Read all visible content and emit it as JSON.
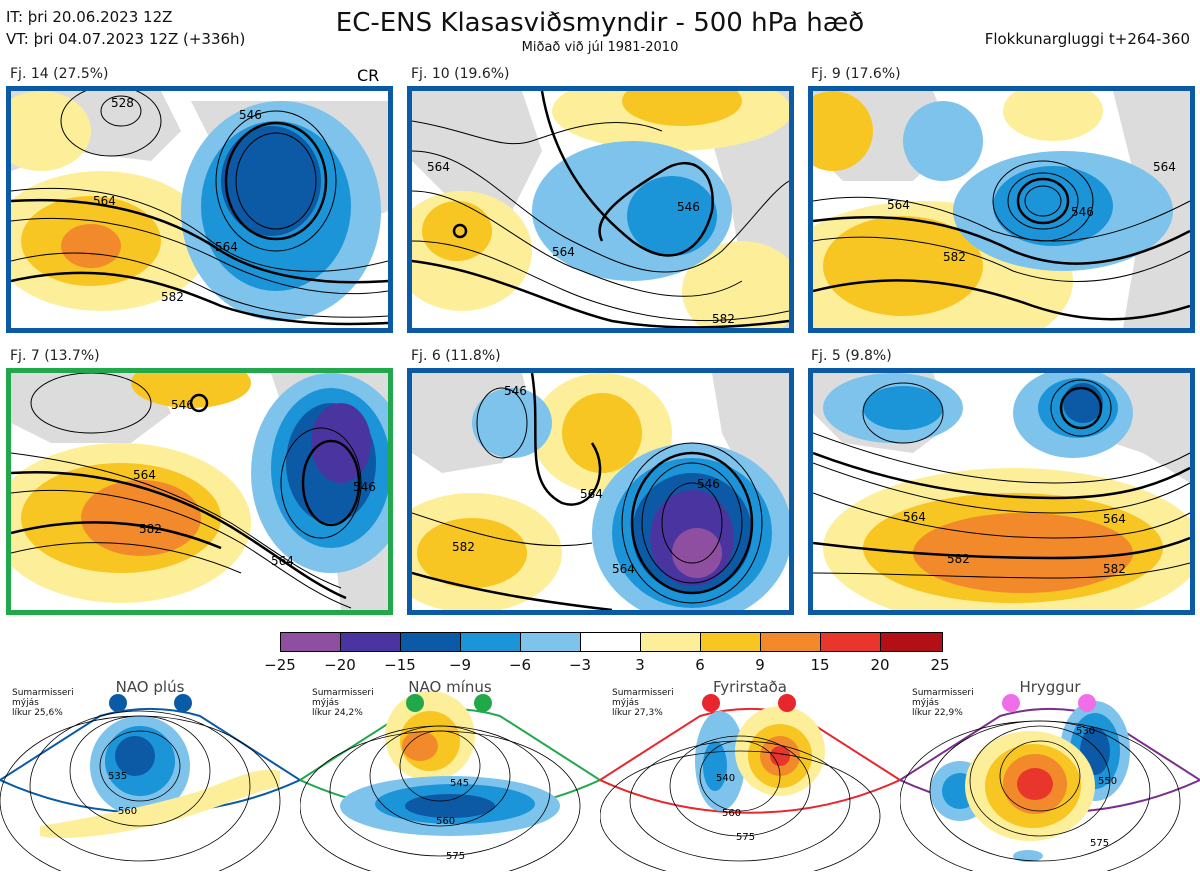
{
  "header": {
    "it_line": "IT: þri 20.06.2023 12Z",
    "vt_line": "VT: þri 04.07.2023 12Z  (+336h)",
    "title": "EC-ENS Klasasviðsmyndir - 500 hPa hæð",
    "subtitle": "Miðað við júl 1981-2010",
    "window": "Flokkunargluggi t+264-360"
  },
  "cr_label": "CR",
  "panels": [
    {
      "label": "Fj. 14 (27.5%)",
      "border": "#0b5aa6",
      "contours": [
        "546",
        "564",
        "582",
        "528",
        "564"
      ]
    },
    {
      "label": "Fj. 10 (19.6%)",
      "border": "#0b5aa6",
      "contours": [
        "564",
        "546",
        "564",
        "582"
      ]
    },
    {
      "label": "Fj. 9 (17.6%)",
      "border": "#0b5aa6",
      "contours": [
        "546",
        "564",
        "582",
        "564"
      ]
    },
    {
      "label": "Fj. 7 (13.7%)",
      "border": "#21a84a",
      "contours": [
        "546",
        "564",
        "582",
        "546",
        "564"
      ]
    },
    {
      "label": "Fj. 6 (11.8%)",
      "border": "#0b5aa6",
      "contours": [
        "546",
        "564",
        "546",
        "564",
        "582"
      ]
    },
    {
      "label": "Fj. 5 (9.8%)",
      "border": "#0b5aa6",
      "contours": [
        "564",
        "582",
        "564",
        "582"
      ]
    }
  ],
  "colorbar": {
    "ticks": [
      "−25",
      "−20",
      "−15",
      "−9",
      "−6",
      "−3",
      "3",
      "6",
      "9",
      "15",
      "20",
      "25"
    ],
    "colors": [
      "#8e4fa0",
      "#4a35a0",
      "#0c5aa6",
      "#1c94d8",
      "#7ec3ec",
      "#ffffff",
      "#fdef9a",
      "#f7c623",
      "#f28a2c",
      "#e8362d",
      "#b30f17"
    ]
  },
  "regimes": [
    {
      "title": "NAO plús",
      "info": [
        "Sumarmisseri",
        "mýjás",
        "líkur 25,6%"
      ],
      "color": "#0b5aa6",
      "contours": [
        "535",
        "560"
      ]
    },
    {
      "title": "NAO mínus",
      "info": [
        "Sumarmisseri",
        "mýjás",
        "líkur 24,2%"
      ],
      "color": "#21a84a",
      "contours": [
        "545",
        "560",
        "575"
      ]
    },
    {
      "title": "Fyrirstaða",
      "info": [
        "Sumarmisseri",
        "mýjás",
        "líkur 27,3%"
      ],
      "color": "#e8262d",
      "contours": [
        "540",
        "560",
        "575"
      ]
    },
    {
      "title": "Hryggur",
      "info": [
        "Sumarmisseri",
        "mýjás",
        "líkur 22,9%"
      ],
      "color": "#7b2f8c",
      "contours": [
        "530",
        "550",
        "575"
      ]
    }
  ]
}
